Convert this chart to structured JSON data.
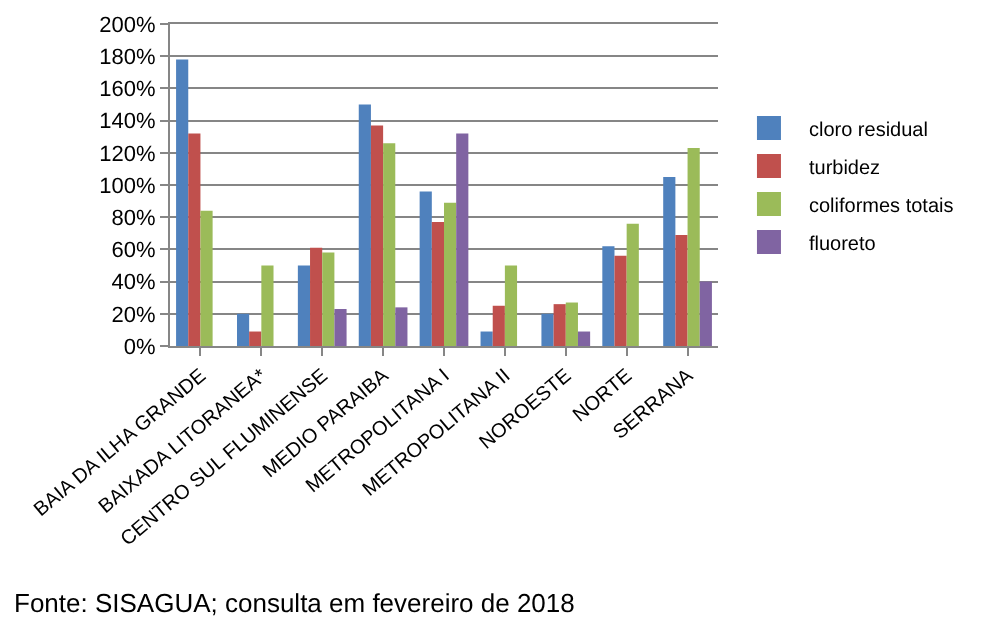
{
  "chart_data": {
    "type": "bar",
    "categories": [
      "BAIA DA ILHA GRANDE",
      "BAIXADA LITORANEA*",
      "CENTRO SUL FLUMINENSE",
      "MEDIO PARAIBA",
      "METROPOLITANA I",
      "METROPOLITANA II",
      "NOROESTE",
      "NORTE",
      "SERRANA"
    ],
    "series": [
      {
        "name": "cloro residual",
        "color": "#4f81bd",
        "values": [
          178,
          20,
          50,
          150,
          96,
          9,
          20,
          62,
          105
        ]
      },
      {
        "name": "turbidez",
        "color": "#c0504d",
        "values": [
          132,
          9,
          61,
          137,
          77,
          25,
          26,
          56,
          69
        ]
      },
      {
        "name": "coliformes totais",
        "color": "#9bbb59",
        "values": [
          84,
          50,
          58,
          126,
          89,
          50,
          27,
          76,
          123
        ]
      },
      {
        "name": "fluoreto",
        "color": "#8064a2",
        "values": [
          null,
          null,
          23,
          24,
          132,
          null,
          9,
          null,
          40
        ]
      }
    ],
    "ylim": [
      0,
      200
    ],
    "yticks": [
      {
        "value": 0,
        "label": "0%"
      },
      {
        "value": 20,
        "label": "20%"
      },
      {
        "value": 40,
        "label": "40%"
      },
      {
        "value": 60,
        "label": "60%"
      },
      {
        "value": 80,
        "label": "80%"
      },
      {
        "value": 100,
        "label": "100%"
      },
      {
        "value": 120,
        "label": "120%"
      },
      {
        "value": 140,
        "label": "140%"
      },
      {
        "value": 160,
        "label": "160%"
      },
      {
        "value": 180,
        "label": "180%"
      },
      {
        "value": 200,
        "label": "200%"
      }
    ],
    "grid": "y",
    "legend": "right",
    "annotations": [
      "Fonte: SISAGUA; consulta em fevereiro de 2018"
    ]
  }
}
